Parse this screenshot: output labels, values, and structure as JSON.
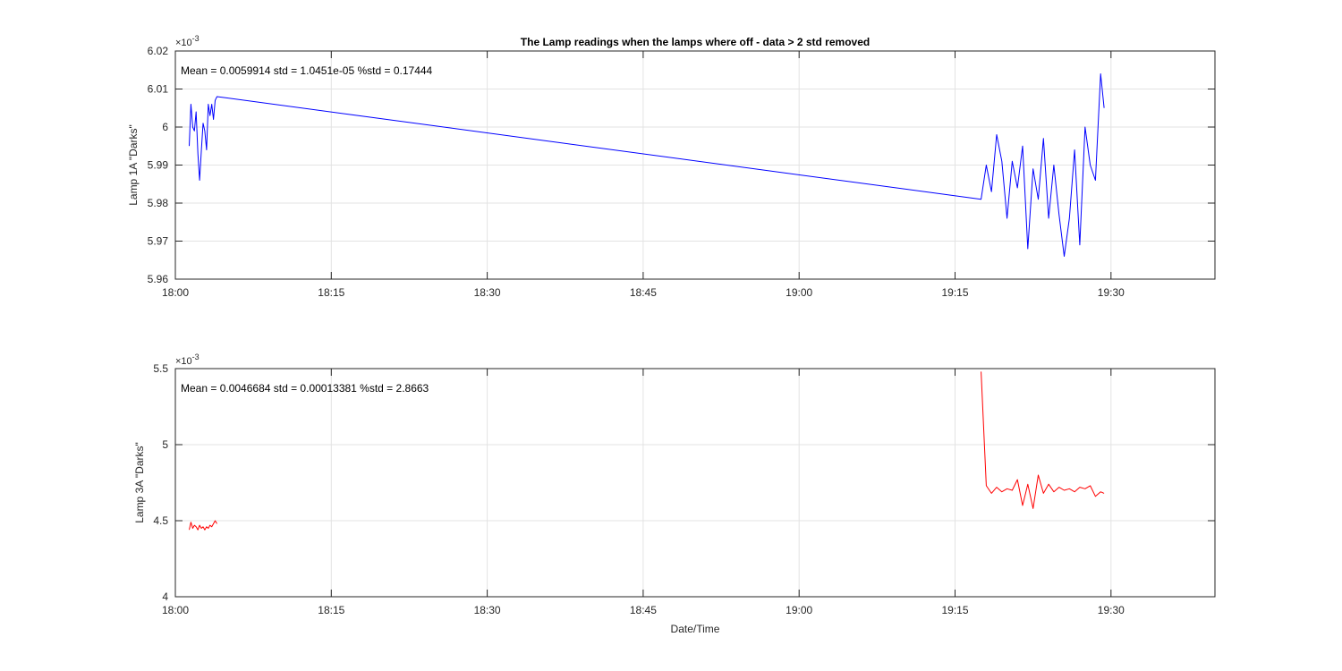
{
  "chart_data": [
    {
      "type": "line",
      "title": "The Lamp readings when the lamps where off - data > 2 std removed",
      "xlabel": "",
      "ylabel": "Lamp 1A \"Darks\"",
      "y_exponent": "×10^-3",
      "annotation": "Mean = 0.0059914  std = 1.0451e-05  %std = 0.17444",
      "xlim": [
        "18:00",
        "19:40"
      ],
      "x_ticks": [
        "18:00",
        "18:15",
        "18:30",
        "18:45",
        "19:00",
        "19:15",
        "19:30"
      ],
      "ylim": [
        5.96,
        6.02
      ],
      "y_ticks": [
        "5.96",
        "5.97",
        "5.98",
        "5.99",
        "6",
        "6.01",
        "6.02"
      ],
      "grid": true,
      "series": [
        {
          "color": "#0000ff",
          "segments": [
            {
              "x": [
                "18:01:20",
                "18:01:30",
                "18:01:40",
                "18:01:50",
                "18:02:00",
                "18:02:10",
                "18:02:20",
                "18:02:30",
                "18:02:40",
                "18:02:50",
                "18:03:00",
                "18:03:10",
                "18:03:20",
                "18:03:30",
                "18:03:40",
                "18:03:50",
                "18:04:00",
                "19:17:30",
                "19:18:00",
                "19:18:30",
                "19:19:00",
                "19:19:30",
                "19:20:00",
                "19:20:30",
                "19:21:00",
                "19:21:30",
                "19:22:00",
                "19:22:30",
                "19:23:00",
                "19:23:30",
                "19:24:00",
                "19:24:30",
                "19:25:00",
                "19:25:30",
                "19:26:00",
                "19:26:30",
                "19:27:00",
                "19:27:30",
                "19:28:00",
                "19:28:30",
                "19:29:00",
                "19:29:20"
              ],
              "y": [
                5.995,
                6.006,
                6.0,
                5.999,
                6.004,
                5.993,
                5.986,
                5.994,
                6.001,
                5.999,
                5.994,
                6.006,
                6.003,
                6.006,
                6.002,
                6.007,
                6.008,
                5.981,
                5.99,
                5.983,
                5.998,
                5.991,
                5.976,
                5.991,
                5.984,
                5.995,
                5.968,
                5.989,
                5.981,
                5.997,
                5.976,
                5.99,
                5.977,
                5.966,
                5.976,
                5.994,
                5.969,
                6.0,
                5.99,
                5.986,
                6.014,
                6.005
              ]
            }
          ]
        }
      ]
    },
    {
      "type": "line",
      "title": "",
      "xlabel": "Date/Time",
      "ylabel": "Lamp 3A \"Darks\"",
      "y_exponent": "×10^-3",
      "annotation": "Mean = 0.0046684  std = 0.00013381  %std = 2.8663",
      "xlim": [
        "18:00",
        "19:40"
      ],
      "x_ticks": [
        "18:00",
        "18:15",
        "18:30",
        "18:45",
        "19:00",
        "19:15",
        "19:30"
      ],
      "ylim": [
        4,
        5.5
      ],
      "y_ticks": [
        "4",
        "4.5",
        "5",
        "5.5"
      ],
      "grid": true,
      "series": [
        {
          "color": "#ff0000",
          "segments": [
            {
              "x": [
                "18:01:20",
                "18:01:30",
                "18:01:40",
                "18:01:50",
                "18:02:00",
                "18:02:10",
                "18:02:20",
                "18:02:30",
                "18:02:40",
                "18:02:50",
                "18:03:00",
                "18:03:10",
                "18:03:20",
                "18:03:30",
                "18:03:40",
                "18:03:50",
                "18:04:00"
              ],
              "y": [
                4.44,
                4.49,
                4.45,
                4.47,
                4.46,
                4.44,
                4.47,
                4.45,
                4.46,
                4.44,
                4.46,
                4.45,
                4.47,
                4.46,
                4.48,
                4.5,
                4.48
              ]
            },
            {
              "x": [
                "19:17:30",
                "19:18:00",
                "19:18:30",
                "19:19:00",
                "19:19:30",
                "19:20:00",
                "19:20:30",
                "19:21:00",
                "19:21:30",
                "19:22:00",
                "19:22:30",
                "19:23:00",
                "19:23:30",
                "19:24:00",
                "19:24:30",
                "19:25:00",
                "19:25:30",
                "19:26:00",
                "19:26:30",
                "19:27:00",
                "19:27:30",
                "19:28:00",
                "19:28:30",
                "19:29:00",
                "19:29:20"
              ],
              "y": [
                5.48,
                4.73,
                4.68,
                4.72,
                4.69,
                4.71,
                4.7,
                4.77,
                4.6,
                4.74,
                4.58,
                4.8,
                4.68,
                4.74,
                4.69,
                4.72,
                4.7,
                4.71,
                4.69,
                4.72,
                4.71,
                4.73,
                4.66,
                4.69,
                4.68
              ]
            }
          ]
        }
      ]
    }
  ]
}
